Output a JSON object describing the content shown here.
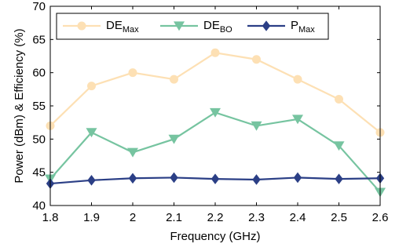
{
  "chart_data": {
    "type": "line",
    "xlabel": "Frequency (GHz)",
    "ylabel": "Power (dBm) & Efficiency (%)",
    "xlim": [
      1.8,
      2.6
    ],
    "ylim": [
      40,
      70
    ],
    "x": [
      1.8,
      1.9,
      2.0,
      2.1,
      2.2,
      2.3,
      2.4,
      2.5,
      2.6
    ],
    "x_tick_labels": [
      "1.8",
      "1.9",
      "2",
      "2.1",
      "2.2",
      "2.3",
      "2.4",
      "2.5",
      "2.6"
    ],
    "y_ticks": [
      40,
      45,
      50,
      55,
      60,
      65,
      70
    ],
    "grid": false,
    "legend_position": "top",
    "series": [
      {
        "name": "DE",
        "subscript": "Max",
        "marker": "circle",
        "color": "#fde0b4",
        "values": [
          52,
          58,
          60,
          59,
          63,
          62,
          59,
          56,
          51
        ]
      },
      {
        "name": "DE",
        "subscript": "BO",
        "marker": "triangle-down",
        "color": "#76c4a0",
        "values": [
          44,
          51,
          48,
          50,
          54,
          52,
          53,
          49,
          42
        ]
      },
      {
        "name": "P",
        "subscript": "Max",
        "marker": "diamond",
        "color": "#2b3f86",
        "values": [
          43.3,
          43.8,
          44.1,
          44.2,
          44.0,
          43.9,
          44.2,
          44.0,
          44.1
        ]
      }
    ]
  }
}
